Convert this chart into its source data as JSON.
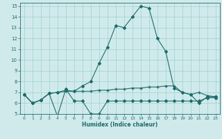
{
  "xlabel": "Humidex (Indice chaleur)",
  "xlim": [
    -0.5,
    23.5
  ],
  "ylim": [
    5,
    15.3
  ],
  "yticks": [
    5,
    6,
    7,
    8,
    9,
    10,
    11,
    12,
    13,
    14,
    15
  ],
  "xticks": [
    0,
    1,
    2,
    3,
    4,
    5,
    6,
    7,
    8,
    9,
    10,
    11,
    12,
    13,
    14,
    15,
    16,
    17,
    18,
    19,
    20,
    21,
    22,
    23
  ],
  "background_color": "#d0eaec",
  "grid_color": "#9ecfcf",
  "line_color": "#1e6b6a",
  "line1_x": [
    0,
    1,
    2,
    3,
    4,
    5,
    6,
    7,
    8,
    9,
    10,
    11,
    12,
    13,
    14,
    15,
    16,
    17,
    18,
    19,
    20,
    21,
    22,
    23
  ],
  "line1_y": [
    6.8,
    6.0,
    6.3,
    6.9,
    4.8,
    7.3,
    6.2,
    6.2,
    5.0,
    5.0,
    6.2,
    6.2,
    6.2,
    6.2,
    6.2,
    6.2,
    6.2,
    6.2,
    6.2,
    6.2,
    6.2,
    6.2,
    6.5,
    6.5
  ],
  "line2_x": [
    0,
    1,
    2,
    3,
    4,
    5,
    6,
    7,
    8,
    9,
    10,
    11,
    12,
    13,
    14,
    15,
    16,
    17,
    18,
    19,
    20,
    21,
    22,
    23
  ],
  "line2_y": [
    6.8,
    6.0,
    6.3,
    6.9,
    7.0,
    7.2,
    7.1,
    7.6,
    8.0,
    9.7,
    11.2,
    13.2,
    13.0,
    14.0,
    15.0,
    14.8,
    12.0,
    10.8,
    7.4,
    7.0,
    6.8,
    6.0,
    6.6,
    6.6
  ],
  "line3_x": [
    0,
    1,
    2,
    3,
    4,
    5,
    6,
    7,
    8,
    9,
    10,
    11,
    12,
    13,
    14,
    15,
    16,
    17,
    18,
    19,
    20,
    21,
    22,
    23
  ],
  "line3_y": [
    6.8,
    6.0,
    6.3,
    6.9,
    7.0,
    7.1,
    7.1,
    7.1,
    7.1,
    7.2,
    7.2,
    7.3,
    7.3,
    7.4,
    7.4,
    7.5,
    7.5,
    7.6,
    7.6,
    7.0,
    6.8,
    7.0,
    6.7,
    6.6
  ]
}
